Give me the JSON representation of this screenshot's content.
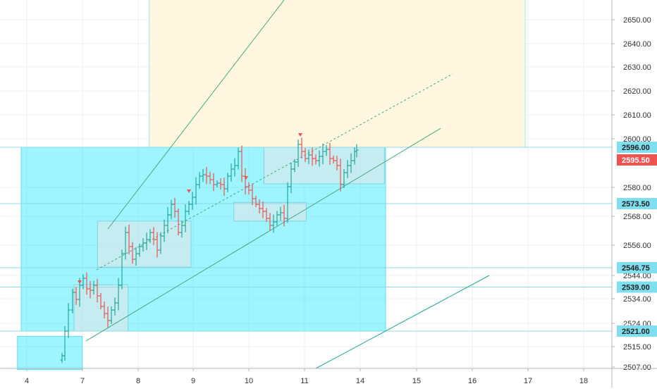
{
  "colors": {
    "cyan_zone": "#00e5ff",
    "cream_zone": "#fff7e0",
    "channel_line": "#4aa880",
    "grid": "#eef0f3",
    "bar_green": "#26a69a",
    "bar_red": "#ef5350",
    "hline": "#8fd8e6",
    "badge_cyan": "#7fdfee",
    "badge_red": "#ef5350",
    "marker_red": "#ef5350"
  },
  "chart_data": {
    "type": "ohlc",
    "x_ticks": [
      "4",
      "7",
      "8",
      "9",
      "10",
      "11",
      "14",
      "15",
      "16",
      "17",
      "18"
    ],
    "y_ticks": [
      "2507.00",
      "2515.00",
      "2524.00",
      "2534.00",
      "2544.00",
      "2556.00",
      "2568.00",
      "2580.00",
      "2600.00",
      "2610.00",
      "2620.00",
      "2630.00",
      "2640.00",
      "2650.00"
    ],
    "price_levels": [
      {
        "label": "2596.00",
        "value": 2596.0,
        "style": "cyan"
      },
      {
        "label": "2573.50",
        "value": 2573.5,
        "style": "cyan"
      },
      {
        "label": "2546.75",
        "value": 2546.75,
        "style": "cyan"
      },
      {
        "label": "2539.00",
        "value": 2539.0,
        "style": "cyan"
      },
      {
        "label": "2521.00",
        "value": 2521.0,
        "style": "cyan"
      }
    ],
    "last_price": {
      "label": "2595.50",
      "value": 2595.5
    },
    "zones": [
      {
        "kind": "supply",
        "price_from": 2596,
        "price_to": 2660,
        "x_from": 8.2,
        "x_to": 16.95
      },
      {
        "kind": "demand",
        "price_from": 2521,
        "price_to": 2596,
        "x_from": 3.7,
        "x_to": 14.45
      },
      {
        "kind": "demand",
        "price_from": 2506,
        "price_to": 2519,
        "x_from": 3.5,
        "x_to": 6.99
      },
      {
        "kind": "box",
        "price_from": 2521,
        "price_to": 2540,
        "x_from": 6.55,
        "x_to": 7.82
      },
      {
        "kind": "box",
        "price_from": 2547,
        "price_to": 2566,
        "x_from": 7.27,
        "x_to": 8.96
      },
      {
        "kind": "box",
        "price_from": 2566,
        "price_to": 2574,
        "x_from": 9.73,
        "x_to": 11.1
      },
      {
        "kind": "box",
        "price_from": 2582,
        "price_to": 2596,
        "x_from": 10.27,
        "x_to": 14.43
      }
    ]
  }
}
